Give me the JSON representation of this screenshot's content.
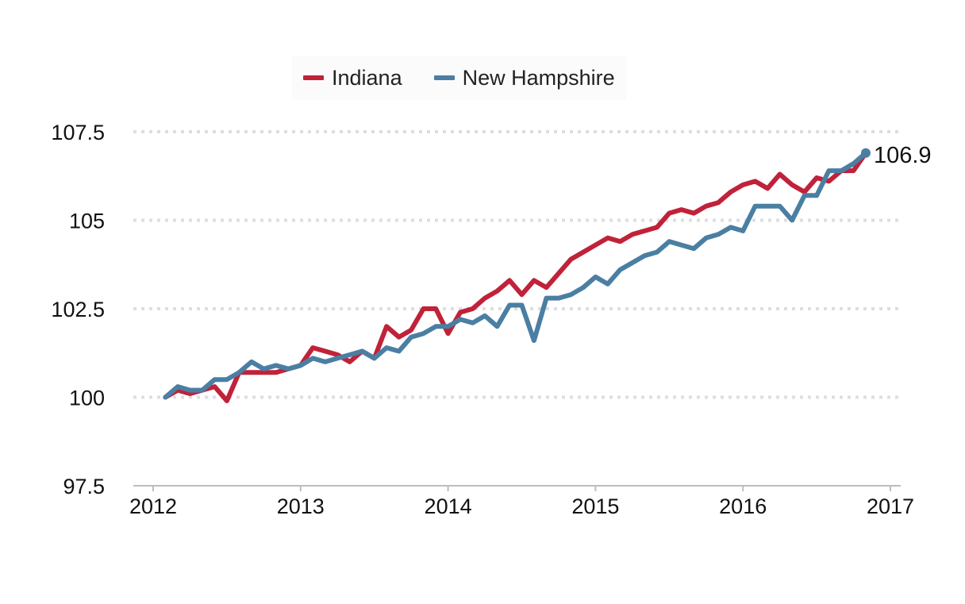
{
  "chart_data": {
    "type": "line",
    "title": "",
    "xlabel": "",
    "ylabel": "",
    "ylim": [
      97.5,
      107.5
    ],
    "xlim": [
      2012,
      2017
    ],
    "y_ticks": [
      "97.5",
      "100",
      "102.5",
      "105",
      "107.5"
    ],
    "x_ticks": [
      "2012",
      "2013",
      "2014",
      "2015",
      "2016",
      "2017"
    ],
    "grid": "horizontal dotted",
    "legend_position": "top-center",
    "end_label": "106.9",
    "series": [
      {
        "name": "Indiana",
        "color": "#c0223a",
        "x": [
          2012.083,
          2012.167,
          2012.25,
          2012.333,
          2012.417,
          2012.5,
          2012.583,
          2012.667,
          2012.75,
          2012.833,
          2012.917,
          2013.0,
          2013.083,
          2013.167,
          2013.25,
          2013.333,
          2013.417,
          2013.5,
          2013.583,
          2013.667,
          2013.75,
          2013.833,
          2013.917,
          2014.0,
          2014.083,
          2014.167,
          2014.25,
          2014.333,
          2014.417,
          2014.5,
          2014.583,
          2014.667,
          2014.75,
          2014.833,
          2014.917,
          2015.0,
          2015.083,
          2015.167,
          2015.25,
          2015.333,
          2015.417,
          2015.5,
          2015.583,
          2015.667,
          2015.75,
          2015.833,
          2015.917,
          2016.0,
          2016.083,
          2016.167,
          2016.25,
          2016.333,
          2016.417,
          2016.5,
          2016.583,
          2016.667,
          2016.75,
          2016.833
        ],
        "values": [
          100.0,
          100.2,
          100.1,
          100.2,
          100.3,
          99.9,
          100.7,
          100.7,
          100.7,
          100.7,
          100.8,
          100.9,
          101.4,
          101.3,
          101.2,
          101.0,
          101.3,
          101.1,
          102.0,
          101.7,
          101.9,
          102.5,
          102.5,
          101.8,
          102.4,
          102.5,
          102.8,
          103.0,
          103.3,
          102.9,
          103.3,
          103.1,
          103.5,
          103.9,
          104.1,
          104.3,
          104.5,
          104.4,
          104.6,
          104.7,
          104.8,
          105.2,
          105.3,
          105.2,
          105.4,
          105.5,
          105.8,
          106.0,
          106.1,
          105.9,
          106.3,
          106.0,
          105.8,
          106.2,
          106.1,
          106.4,
          106.4,
          106.9
        ]
      },
      {
        "name": "New Hampshire",
        "color": "#4a7fa3",
        "x": [
          2012.083,
          2012.167,
          2012.25,
          2012.333,
          2012.417,
          2012.5,
          2012.583,
          2012.667,
          2012.75,
          2012.833,
          2012.917,
          2013.0,
          2013.083,
          2013.167,
          2013.25,
          2013.333,
          2013.417,
          2013.5,
          2013.583,
          2013.667,
          2013.75,
          2013.833,
          2013.917,
          2014.0,
          2014.083,
          2014.167,
          2014.25,
          2014.333,
          2014.417,
          2014.5,
          2014.583,
          2014.667,
          2014.75,
          2014.833,
          2014.917,
          2015.0,
          2015.083,
          2015.167,
          2015.25,
          2015.333,
          2015.417,
          2015.5,
          2015.583,
          2015.667,
          2015.75,
          2015.833,
          2015.917,
          2016.0,
          2016.083,
          2016.167,
          2016.25,
          2016.333,
          2016.417,
          2016.5,
          2016.583,
          2016.667,
          2016.75,
          2016.833
        ],
        "values": [
          100.0,
          100.3,
          100.2,
          100.2,
          100.5,
          100.5,
          100.7,
          101.0,
          100.8,
          100.9,
          100.8,
          100.9,
          101.1,
          101.0,
          101.1,
          101.2,
          101.3,
          101.1,
          101.4,
          101.3,
          101.7,
          101.8,
          102.0,
          102.0,
          102.2,
          102.1,
          102.3,
          102.0,
          102.6,
          102.6,
          101.6,
          102.8,
          102.8,
          102.9,
          103.1,
          103.4,
          103.2,
          103.6,
          103.8,
          104.0,
          104.1,
          104.4,
          104.3,
          104.2,
          104.5,
          104.6,
          104.8,
          104.7,
          105.4,
          105.4,
          105.4,
          105.0,
          105.7,
          105.7,
          106.4,
          106.4,
          106.6,
          106.9
        ]
      }
    ]
  }
}
